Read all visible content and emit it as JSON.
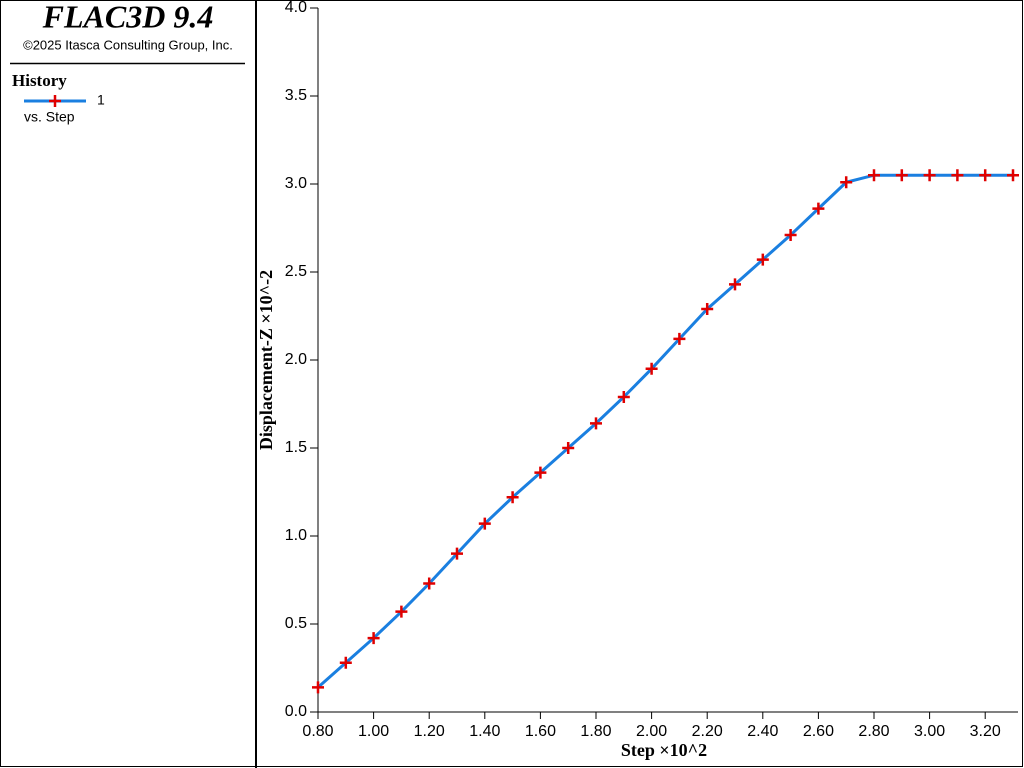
{
  "chart_data": {
    "type": "line",
    "title": "FLAC3D 9.4",
    "subtitle": "©2025 Itasca Consulting Group, Inc.",
    "legend_title": "History",
    "legend_note": "vs. Step",
    "x_label": "Step ×10^2",
    "y_label": "Displacement-Z ×10^-2",
    "x": [
      0.8,
      0.9,
      1.0,
      1.1,
      1.2,
      1.3,
      1.4,
      1.5,
      1.6,
      1.7,
      1.8,
      1.9,
      2.0,
      2.1,
      2.2,
      2.3,
      2.4,
      2.5,
      2.6,
      2.7,
      2.8,
      2.9,
      3.0,
      3.1,
      3.2,
      3.3
    ],
    "series": [
      {
        "name": "1",
        "color": "#1a7fe0",
        "marker_color": "#e00000",
        "values": [
          0.14,
          0.28,
          0.42,
          0.57,
          0.73,
          0.9,
          1.07,
          1.22,
          1.36,
          1.5,
          1.64,
          1.79,
          1.95,
          2.12,
          2.29,
          2.43,
          2.57,
          2.71,
          2.86,
          3.01,
          3.05,
          3.05,
          3.05,
          3.05,
          3.05,
          3.05
        ]
      }
    ],
    "xlim": [
      0.8,
      3.3
    ],
    "ylim": [
      0,
      4
    ],
    "xticks": [
      {
        "value": 0.8,
        "label": "0.80"
      },
      {
        "value": 1.0,
        "label": "1.00"
      },
      {
        "value": 1.2,
        "label": "1.20"
      },
      {
        "value": 1.4,
        "label": "1.40"
      },
      {
        "value": 1.6,
        "label": "1.60"
      },
      {
        "value": 1.8,
        "label": "1.80"
      },
      {
        "value": 2.0,
        "label": "2.00"
      },
      {
        "value": 2.2,
        "label": "2.20"
      },
      {
        "value": 2.4,
        "label": "2.40"
      },
      {
        "value": 2.6,
        "label": "2.60"
      },
      {
        "value": 2.8,
        "label": "2.80"
      },
      {
        "value": 3.0,
        "label": "3.00"
      },
      {
        "value": 3.2,
        "label": "3.20"
      }
    ],
    "yticks": [
      {
        "value": 0,
        "label": "0.0"
      },
      {
        "value": 0.5,
        "label": "0.5"
      },
      {
        "value": 1,
        "label": "1.0"
      },
      {
        "value": 1.5,
        "label": "1.5"
      },
      {
        "value": 2,
        "label": "2.0"
      },
      {
        "value": 2.5,
        "label": "2.5"
      },
      {
        "value": 3,
        "label": "3.0"
      },
      {
        "value": 3.5,
        "label": "3.5"
      },
      {
        "value": 4,
        "label": "4.0"
      }
    ]
  }
}
